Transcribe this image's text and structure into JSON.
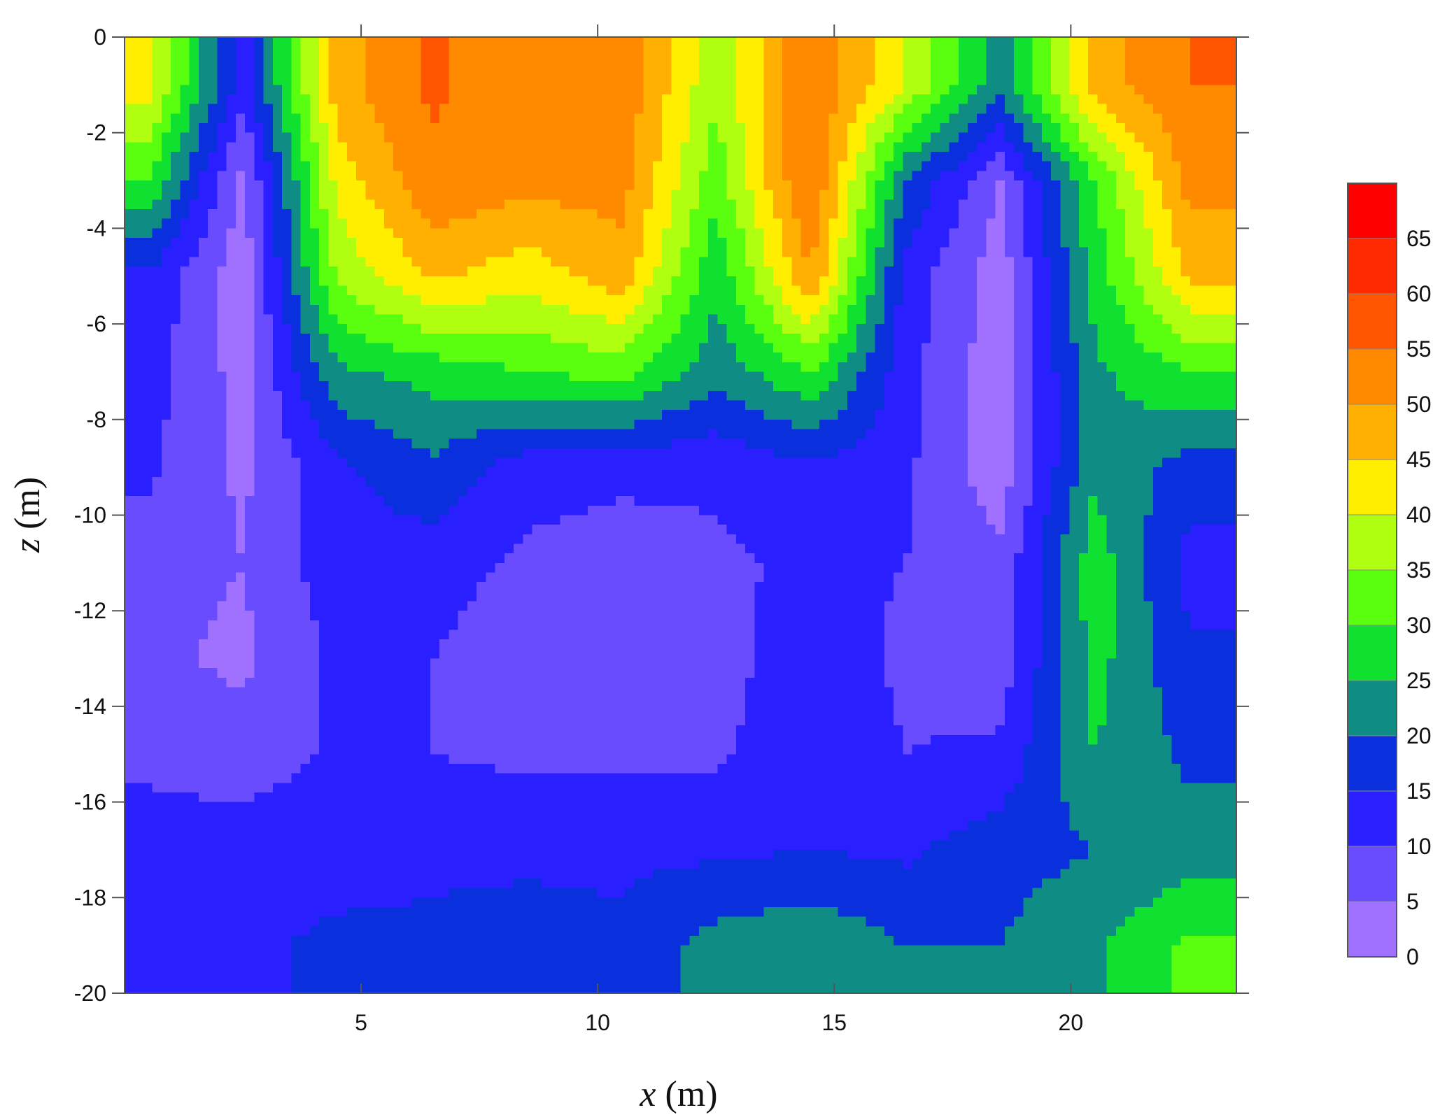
{
  "chart_data": {
    "type": "heatmap",
    "subtype": "filled-contour",
    "title": "",
    "xlabel": {
      "var": "x",
      "unit": " (m)"
    },
    "ylabel": {
      "var": "z",
      "unit": " (m)"
    },
    "xlim": [
      0,
      23.5
    ],
    "ylim": [
      -20,
      0
    ],
    "xticks": [
      5,
      10,
      15,
      20
    ],
    "yticks": [
      0,
      -2,
      -4,
      -6,
      -8,
      -10,
      -12,
      -14,
      -16,
      -18,
      -20
    ],
    "grid": false,
    "legend_position": "right",
    "colorbar": {
      "levels": [
        0,
        5,
        10,
        15,
        20,
        25,
        30,
        35,
        40,
        45,
        50,
        55,
        60,
        65,
        70
      ],
      "tick_labels": [
        "0",
        "5",
        "10",
        "15",
        "20",
        "25",
        "30",
        "35",
        "40",
        "45",
        "50",
        "55",
        "60",
        "65"
      ],
      "colors": [
        "#a070ff",
        "#6a4cff",
        "#2a20ff",
        "#0a2fdc",
        "#0f8c84",
        "#10e030",
        "#5aff10",
        "#b0ff10",
        "#ffee00",
        "#ffb000",
        "#ff8a00",
        "#ff5500",
        "#ff2a00",
        "#ff0000"
      ]
    },
    "field": {
      "x": [
        0.5,
        2.5,
        4.5,
        6.5,
        8.5,
        10.5,
        12.5,
        14.5,
        16.5,
        18.5,
        20.5,
        22.5
      ],
      "z": [
        -1,
        -3,
        -5,
        -7,
        -9,
        -11,
        -13,
        -15,
        -17,
        -19
      ],
      "values": [
        [
          42,
          12,
          48,
          56,
          50,
          54,
          36,
          55,
          40,
          22,
          48,
          55
        ],
        [
          30,
          3,
          42,
          54,
          52,
          52,
          32,
          56,
          20,
          5,
          30,
          52
        ],
        [
          14,
          2,
          36,
          46,
          42,
          48,
          26,
          50,
          13,
          2,
          27,
          46
        ],
        [
          12,
          3,
          24,
          27,
          30,
          32,
          22,
          30,
          12,
          2,
          24,
          30
        ],
        [
          11,
          4,
          14,
          19,
          12,
          11,
          11,
          14,
          11,
          2,
          24,
          18
        ],
        [
          7,
          5,
          13,
          12,
          9,
          8,
          9,
          11,
          10,
          6,
          28,
          13
        ],
        [
          6,
          4,
          11,
          10,
          7,
          9,
          8,
          13,
          9,
          7,
          27,
          16
        ],
        [
          9,
          7,
          11,
          10,
          9,
          9,
          9,
          14,
          10,
          11,
          25,
          19
        ],
        [
          12,
          13,
          13,
          14,
          14,
          14,
          14,
          15,
          14,
          18,
          20,
          22
        ],
        [
          14,
          14,
          16,
          16,
          17,
          16,
          22,
          24,
          20,
          20,
          24,
          31
        ]
      ]
    }
  }
}
